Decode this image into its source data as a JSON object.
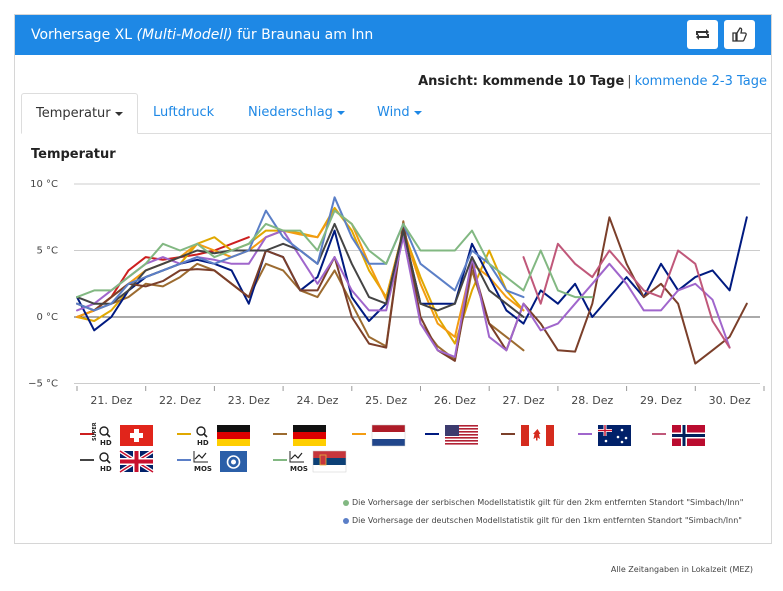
{
  "header": {
    "title_prefix": "Vorhersage XL",
    "title_model": "(Multi-Modell)",
    "title_suffix": "für Braunau am Inn"
  },
  "view": {
    "label": "Ansicht: kommende 10 Tage",
    "separator": "|",
    "alt_link": "kommende 2-3 Tage"
  },
  "tabs": [
    {
      "label": "Temperatur",
      "dropdown": true,
      "active": true
    },
    {
      "label": "Luftdruck",
      "dropdown": false,
      "active": false
    },
    {
      "label": "Niederschlag",
      "dropdown": true,
      "active": false
    },
    {
      "label": "Wind",
      "dropdown": true,
      "active": false
    }
  ],
  "section_title": "Temperatur",
  "legend": [
    {
      "color": "#cc1f1f",
      "flag": "switzerland",
      "badges": [
        "SUPER",
        "HD"
      ]
    },
    {
      "color": "#e0a800",
      "flag": "germany",
      "badges": [
        "HD"
      ]
    },
    {
      "color": "#9c6b30",
      "flag": "germany",
      "badges": []
    },
    {
      "color": "#f39c12",
      "flag": "netherlands",
      "badges": []
    },
    {
      "color": "#001a80",
      "flag": "usa",
      "badges": []
    },
    {
      "color": "#7b3f2a",
      "flag": "canada",
      "badges": []
    },
    {
      "color": "#a066cc",
      "flag": "australia",
      "badges": []
    },
    {
      "color": "#c0587a",
      "flag": "norway",
      "badges": []
    },
    {
      "color": "#444444",
      "flag": "uk",
      "badges": [
        "HD"
      ]
    },
    {
      "color": "#5b7fc7",
      "flag": "dwd-mos",
      "badges": [
        "MOS"
      ]
    },
    {
      "color": "#82b882",
      "flag": "serbia",
      "badges": [
        "MOS"
      ]
    }
  ],
  "notes": [
    {
      "color": "#82b882",
      "text": "Die Vorhersage der serbischen Modellstatistik gilt für den 2km entfernten Standort \"Simbach/Inn\""
    },
    {
      "color": "#5b7fc7",
      "text": "Die Vorhersage der deutschen Modellstatistik gilt für den 1km entfernten Standort \"Simbach/Inn\""
    }
  ],
  "timezone_note": "Alle Zeitangaben in Lokalzeit (MEZ)",
  "chart_data": {
    "type": "line",
    "title": "",
    "xlabel": "",
    "ylabel": "",
    "ylim": [
      -5,
      10
    ],
    "y_ticks": [
      {
        "value": 10,
        "label": "10 °C"
      },
      {
        "value": 5,
        "label": "5 °C"
      },
      {
        "value": 0,
        "label": "0 °C"
      },
      {
        "value": -5,
        "label": "−5 °C"
      }
    ],
    "x_start_label": "21. Dez",
    "x_ticks": [
      "21. Dez",
      "22. Dez",
      "23. Dez",
      "24. Dez",
      "25. Dez",
      "26. Dez",
      "27. Dez",
      "28. Dez",
      "29. Dez",
      "30. Dez"
    ],
    "highlight_box": {
      "x_from": 24.0,
      "x_to": 27.0
    },
    "series": [
      {
        "color": "#cc1f1f",
        "x": [
          0,
          0.25,
          0.5,
          0.75,
          1,
          1.25,
          1.5,
          1.75,
          2,
          2.25,
          2.5
        ],
        "y": [
          0,
          0.5,
          1.5,
          3.5,
          4.5,
          4.3,
          4.5,
          4.7,
          5.0,
          5.5,
          6.0
        ]
      },
      {
        "color": "#e0a800",
        "x": [
          0,
          0.25,
          0.5,
          0.75,
          1,
          1.25,
          1.5,
          1.75,
          2,
          2.25,
          2.5,
          2.75,
          3,
          3.25,
          3.5,
          3.75,
          4,
          4.25,
          4.5,
          4.75,
          5,
          5.25,
          5.5,
          5.75,
          6,
          6.25,
          6.5
        ],
        "y": [
          0,
          -0.3,
          0.5,
          2,
          3,
          3.5,
          4,
          5.5,
          6,
          5,
          5.5,
          6.5,
          6.5,
          6.3,
          6,
          8.2,
          6.5,
          3.5,
          1.5,
          6.5,
          3,
          0,
          -2,
          2,
          5,
          2,
          0.5
        ]
      },
      {
        "color": "#9c6b30",
        "x": [
          0,
          0.25,
          0.5,
          0.75,
          1,
          1.25,
          1.5,
          1.75,
          2,
          2.25,
          2.5,
          2.75,
          3,
          3.25,
          3.5,
          3.75,
          4,
          4.25,
          4.5,
          4.75,
          5,
          5.25,
          5.5,
          5.75,
          6,
          6.25,
          6.5
        ],
        "y": [
          0,
          0.5,
          1,
          1.5,
          2.5,
          2.3,
          3,
          4,
          3.5,
          2.5,
          1.5,
          4,
          3.5,
          2,
          1.5,
          3.5,
          1,
          -1.5,
          -2.2,
          7.2,
          -0.5,
          -2.2,
          -3.2,
          3.5,
          -0.5,
          -1.5,
          -2.5
        ]
      },
      {
        "color": "#f39c12",
        "x": [
          0,
          0.25,
          0.5,
          0.75,
          1,
          1.25,
          1.5,
          1.75,
          2,
          2.25,
          2.5,
          2.75,
          3,
          3.25,
          3.5,
          3.75,
          4,
          4.25,
          4.5,
          4.75,
          5,
          5.25,
          5.5,
          5.75,
          6,
          6.25,
          6.5
        ],
        "y": [
          0,
          0.5,
          1.5,
          2.5,
          3.5,
          4,
          4.5,
          5.5,
          5,
          4.5,
          5,
          6,
          6.5,
          6.2,
          6,
          8,
          7,
          4,
          1.3,
          6.5,
          2.5,
          -0.5,
          -1.5,
          4,
          3,
          1.5,
          0.5
        ]
      },
      {
        "color": "#001a80",
        "x": [
          0,
          0.25,
          0.5,
          0.75,
          1,
          1.25,
          1.5,
          1.75,
          2,
          2.25,
          2.5,
          2.75,
          3,
          3.25,
          3.5,
          3.75,
          4,
          4.25,
          4.5,
          4.75,
          5,
          5.25,
          5.5,
          5.75,
          6,
          6.25,
          6.5,
          6.75,
          7,
          7.25,
          7.5,
          7.75,
          8,
          8.25,
          8.5,
          8.75,
          9,
          9.25,
          9.5,
          9.75
        ],
        "y": [
          1.5,
          -1,
          0,
          2,
          3,
          3.5,
          4,
          4.3,
          4,
          3.5,
          1,
          5,
          4.5,
          2,
          3,
          6.5,
          1.5,
          -0.3,
          1,
          6.5,
          1,
          1,
          1,
          5.5,
          3,
          0.5,
          -0.5,
          2,
          1,
          2.5,
          0,
          1.5,
          3,
          1.5,
          4,
          2,
          3,
          3.5,
          2,
          7.5
        ]
      },
      {
        "color": "#7b3f2a",
        "x": [
          0,
          0.25,
          0.5,
          0.75,
          1,
          1.25,
          1.5,
          1.75,
          2,
          2.25,
          2.5,
          2.75,
          3,
          3.25,
          3.5,
          3.75,
          4,
          4.25,
          4.5,
          4.75,
          5,
          5.25,
          5.5,
          5.75,
          6,
          6.25,
          6.5,
          6.75,
          7,
          7.25,
          7.5,
          7.75,
          8,
          8.25,
          8.5,
          8.75,
          9,
          9.25,
          9.5,
          9.75
        ],
        "y": [
          1,
          0.5,
          1.5,
          2.5,
          2.3,
          2.7,
          3.5,
          3.6,
          3.5,
          2.5,
          1.5,
          5,
          4.5,
          2,
          2,
          4.5,
          0,
          -2,
          -2.3,
          7,
          0,
          -2.5,
          -3.3,
          4,
          -0.5,
          -2.5,
          1,
          -0.5,
          -2.5,
          -2.6,
          1,
          7.5,
          4,
          1.5,
          2.5,
          1,
          -3.5,
          -2.5,
          -1.5,
          1
        ]
      },
      {
        "color": "#a066cc",
        "x": [
          0,
          0.25,
          0.5,
          0.75,
          1,
          1.25,
          1.5,
          1.75,
          2,
          2.25,
          2.5,
          2.75,
          3,
          3.25,
          3.5,
          3.75,
          4,
          4.25,
          4.5,
          4.75,
          5,
          5.25,
          5.5,
          5.75,
          6,
          6.25,
          6.5,
          6.75,
          7,
          7.25,
          7.5,
          7.75,
          8,
          8.25,
          8.5,
          8.75,
          9,
          9.25,
          9.5
        ],
        "y": [
          0.5,
          1,
          2,
          3,
          4,
          4.5,
          4,
          4.5,
          4.3,
          4,
          4,
          6,
          6.5,
          4.5,
          2.5,
          4.5,
          2,
          0.5,
          0.5,
          6,
          -0.5,
          -2.5,
          -3,
          4.5,
          -1.5,
          -2.5,
          1,
          -1,
          -0.5,
          1,
          2.5,
          4,
          2.5,
          0.5,
          0.5,
          2,
          2.5,
          1.3,
          -2.3
        ]
      },
      {
        "color": "#c0587a",
        "x": [
          6.5,
          6.75,
          7,
          7.25,
          7.5,
          7.75,
          8,
          8.25,
          8.5,
          8.75,
          9,
          9.25,
          9.5
        ],
        "y": [
          4.5,
          1,
          5.5,
          4,
          3,
          5,
          3.5,
          2,
          1.5,
          5,
          4,
          -0.3,
          -2.3
        ]
      },
      {
        "color": "#444444",
        "x": [
          0,
          0.25,
          0.5,
          0.75,
          1,
          1.25,
          1.5,
          1.75,
          2,
          2.25,
          2.5,
          2.75,
          3,
          3.25,
          3.5,
          3.75,
          4,
          4.25,
          4.5,
          4.75,
          5,
          5.25,
          5.5,
          5.75,
          6,
          6.25,
          6.5
        ],
        "y": [
          1.5,
          1,
          1,
          2,
          3.5,
          4,
          4.5,
          5,
          4.8,
          5,
          5,
          5,
          5.5,
          5,
          4,
          7,
          4,
          1.5,
          1,
          6.5,
          1,
          0.5,
          1,
          4.5,
          2,
          1,
          0
        ]
      },
      {
        "color": "#5b7fc7",
        "x": [
          0,
          0.25,
          0.5,
          0.75,
          1,
          1.25,
          1.5,
          1.75,
          2,
          2.25,
          2.5,
          2.75,
          3,
          3.25,
          3.5,
          3.75,
          4,
          4.25,
          4.5,
          4.75,
          5,
          5.25,
          5.5,
          5.75,
          6,
          6.25,
          6.5
        ],
        "y": [
          1,
          0.5,
          1,
          2.5,
          3,
          3.5,
          4,
          4.5,
          4,
          4.5,
          5,
          8,
          6,
          5,
          4,
          9,
          6,
          4,
          4,
          7,
          4,
          3,
          2,
          5,
          4,
          2,
          1.5
        ]
      },
      {
        "color": "#82b882",
        "x": [
          0,
          0.25,
          0.5,
          0.75,
          1,
          1.25,
          1.5,
          1.75,
          2,
          2.25,
          2.5,
          2.75,
          3,
          3.25,
          3.5,
          3.75,
          4,
          4.25,
          4.5,
          4.75,
          5,
          5.25,
          5.5,
          5.75,
          6,
          6.25,
          6.5,
          6.75,
          7,
          7.25,
          7.5
        ],
        "y": [
          1.5,
          2,
          2,
          3,
          4,
          5.5,
          5,
          5.5,
          4.5,
          5,
          5.5,
          7,
          6.5,
          6.5,
          5,
          8,
          7,
          5,
          4,
          7,
          5,
          5,
          5,
          6.5,
          4,
          3,
          2,
          5,
          2,
          1.5,
          1.5
        ]
      }
    ]
  }
}
